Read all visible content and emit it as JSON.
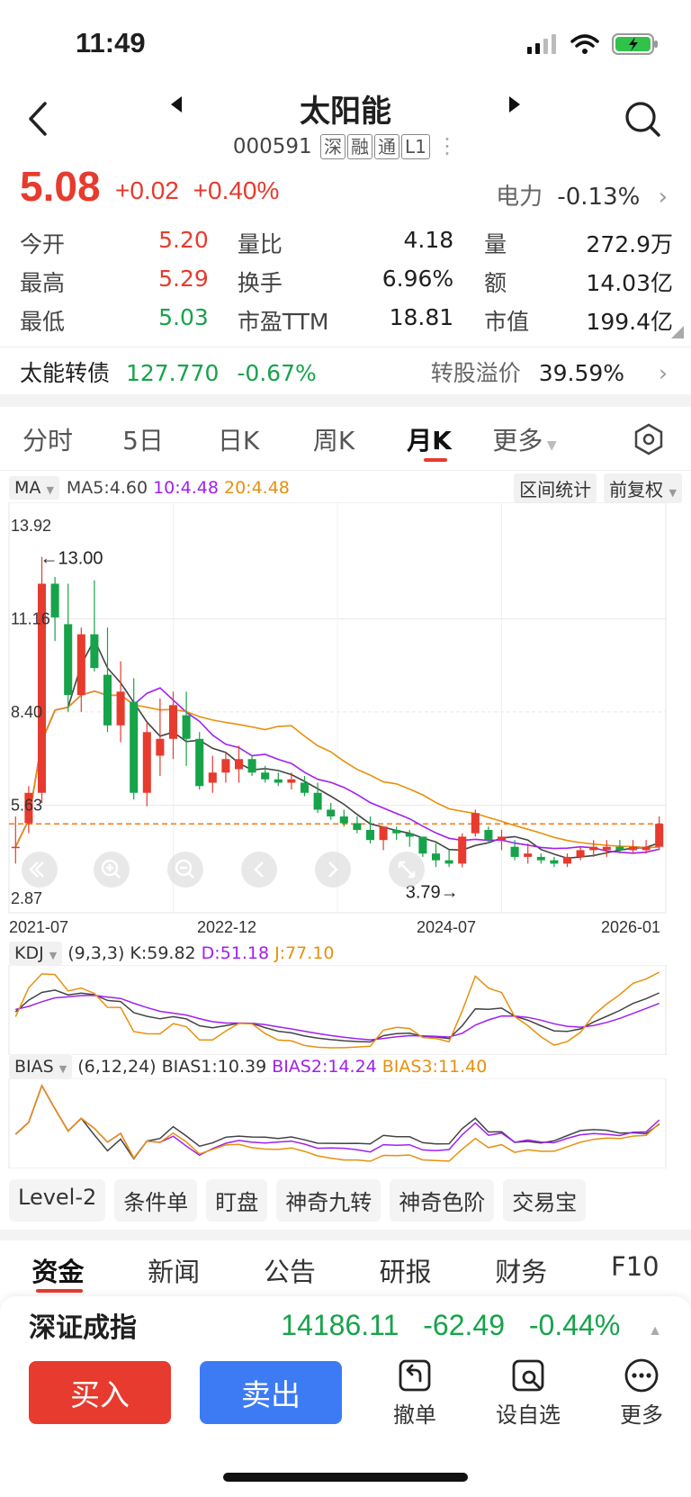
{
  "status": {
    "time": "11:49"
  },
  "header": {
    "title": "太阳能",
    "code": "000591",
    "tags": [
      "深",
      "融",
      "通",
      "L1"
    ]
  },
  "quote": {
    "price": "5.08",
    "change": "+0.02",
    "change_pct": "+0.40%",
    "sector_name": "电力",
    "sector_pct": "-0.13%"
  },
  "stats": [
    [
      {
        "label": "今开",
        "value": "5.20",
        "color": "red"
      },
      {
        "label": "量比",
        "value": "4.18"
      },
      {
        "label": "量",
        "value": "272.9万"
      }
    ],
    [
      {
        "label": "最高",
        "value": "5.29",
        "color": "red"
      },
      {
        "label": "换手",
        "value": "6.96%"
      },
      {
        "label": "额",
        "value": "14.03亿"
      }
    ],
    [
      {
        "label": "最低",
        "value": "5.03",
        "color": "green"
      },
      {
        "label": "市盈TTM",
        "value": "18.81"
      },
      {
        "label": "市值",
        "value": "199.4亿"
      }
    ]
  ],
  "bond": {
    "name": "太能转债",
    "price": "127.770",
    "pct": "-0.67%",
    "premium_label": "转股溢价",
    "premium_value": "39.59%"
  },
  "period_tabs": [
    "分时",
    "5日",
    "日K",
    "周K",
    "月K",
    "更多"
  ],
  "ma": {
    "selector": "MA",
    "ma5": "MA5:4.60",
    "ma10": "10:4.48",
    "ma20": "20:4.48",
    "btn_range": "区间统计",
    "btn_adjust": "前复权"
  },
  "kdj": {
    "name": "KDJ",
    "params": "(9,3,3)",
    "k": "K:59.82",
    "d": "D:51.18",
    "j": "J:77.10"
  },
  "bias": {
    "name": "BIAS",
    "params": "(6,12,24)",
    "b1": "BIAS1:10.39",
    "b2": "BIAS2:14.24",
    "b3": "BIAS3:11.40"
  },
  "chart_data": {
    "type": "candlestick",
    "y_ticks": [
      "13.92",
      "11.16",
      "8.40",
      "5.63",
      "2.87"
    ],
    "x_ticks": [
      "2021-07",
      "2022-12",
      "2024-07",
      "2026-01"
    ],
    "annotations": {
      "high": "13.00",
      "low": "3.79"
    },
    "last_price": 5.08,
    "ylim": [
      2.87,
      13.92
    ],
    "candles": [
      [
        4.4,
        5.3,
        3.9,
        4.4
      ],
      [
        5.1,
        6.2,
        4.8,
        6.0
      ],
      [
        6.0,
        13.0,
        5.7,
        12.2
      ],
      [
        12.2,
        12.4,
        10.5,
        11.2
      ],
      [
        11.0,
        12.2,
        8.4,
        8.9
      ],
      [
        8.9,
        10.9,
        8.4,
        10.7
      ],
      [
        10.7,
        12.3,
        9.6,
        9.7
      ],
      [
        9.5,
        10.9,
        7.8,
        8.0
      ],
      [
        8.0,
        9.9,
        7.5,
        9.0
      ],
      [
        8.7,
        9.4,
        5.8,
        6.0
      ],
      [
        6.0,
        8.1,
        5.6,
        7.8
      ],
      [
        7.1,
        8.8,
        6.5,
        7.6
      ],
      [
        7.6,
        9.0,
        7.0,
        8.6
      ],
      [
        8.3,
        9.0,
        6.8,
        7.6
      ],
      [
        7.6,
        7.8,
        6.1,
        6.2
      ],
      [
        6.3,
        7.1,
        6.0,
        6.6
      ],
      [
        6.6,
        7.2,
        6.3,
        7.0
      ],
      [
        6.7,
        7.4,
        6.3,
        7.0
      ],
      [
        7.0,
        7.1,
        6.5,
        6.6
      ],
      [
        6.6,
        6.8,
        6.3,
        6.4
      ],
      [
        6.4,
        6.6,
        6.2,
        6.3
      ],
      [
        6.3,
        6.6,
        6.1,
        6.4
      ],
      [
        6.3,
        6.5,
        5.9,
        6.0
      ],
      [
        6.0,
        6.3,
        5.4,
        5.5
      ],
      [
        5.5,
        5.7,
        5.2,
        5.3
      ],
      [
        5.3,
        5.5,
        5.0,
        5.1
      ],
      [
        5.1,
        5.3,
        4.8,
        4.9
      ],
      [
        4.9,
        5.3,
        4.5,
        4.6
      ],
      [
        4.6,
        5.0,
        4.3,
        5.0
      ],
      [
        4.9,
        5.0,
        4.6,
        4.8
      ],
      [
        4.8,
        4.9,
        4.4,
        4.7
      ],
      [
        4.7,
        4.7,
        4.1,
        4.2
      ],
      [
        4.2,
        4.5,
        3.8,
        4.0
      ],
      [
        4.0,
        4.3,
        3.8,
        3.9
      ],
      [
        3.9,
        4.8,
        3.79,
        4.7
      ],
      [
        4.8,
        5.5,
        4.7,
        5.4
      ],
      [
        4.9,
        5.0,
        4.5,
        4.6
      ],
      [
        4.6,
        4.9,
        4.3,
        4.7
      ],
      [
        4.4,
        4.6,
        4.0,
        4.1
      ],
      [
        4.1,
        4.5,
        3.9,
        4.2
      ],
      [
        4.1,
        4.2,
        3.9,
        4.0
      ],
      [
        4.0,
        4.1,
        3.8,
        3.9
      ],
      [
        3.9,
        4.2,
        3.8,
        4.1
      ],
      [
        4.1,
        4.4,
        4.0,
        4.3
      ],
      [
        4.3,
        4.6,
        4.1,
        4.4
      ],
      [
        4.3,
        4.6,
        4.1,
        4.4
      ],
      [
        4.4,
        4.6,
        4.2,
        4.3
      ],
      [
        4.3,
        4.6,
        4.2,
        4.4
      ],
      [
        4.3,
        4.6,
        4.2,
        4.4
      ],
      [
        4.4,
        5.3,
        4.3,
        5.08
      ]
    ]
  },
  "tools": [
    "Level-2",
    "条件单",
    "盯盘",
    "神奇九转",
    "神奇色阶",
    "交易宝"
  ],
  "news_tabs": [
    "资金",
    "新闻",
    "公告",
    "研报",
    "财务",
    "F10"
  ],
  "index": {
    "name": "深证成指",
    "value": "14186.11",
    "change": "-62.49",
    "pct": "-0.44%"
  },
  "actions": {
    "buy": "买入",
    "sell": "卖出",
    "cancel": "撤单",
    "watch": "设自选",
    "more": "更多"
  },
  "colors": {
    "up": "#e63b2e",
    "down": "#16a34a",
    "ma5": "#444444",
    "ma10": "#a020f0",
    "ma20": "#e8900c",
    "accent_blue": "#3d7bf5"
  }
}
